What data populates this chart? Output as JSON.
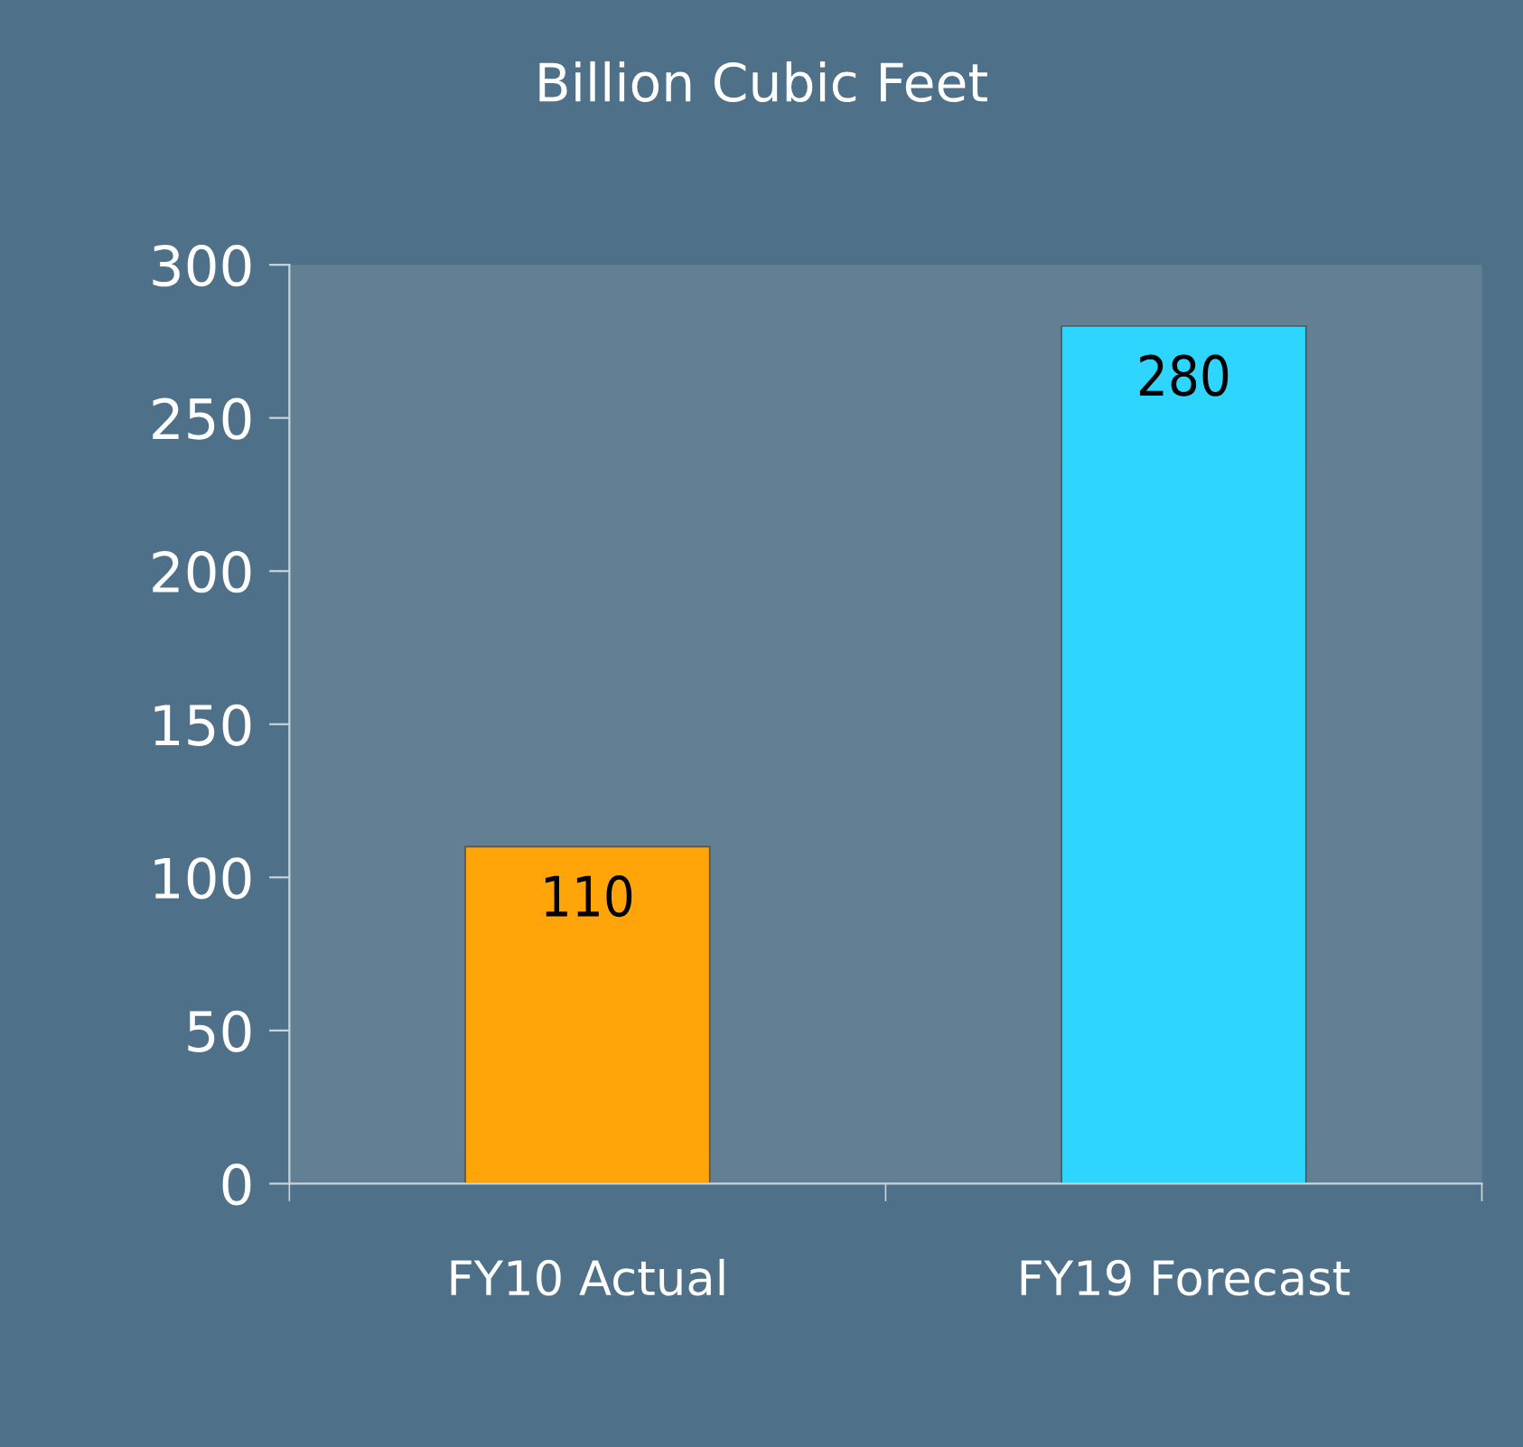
{
  "chart_data": {
    "type": "bar",
    "title": "Billion Cubic Feet",
    "categories": [
      "FY10 Actual",
      "FY19 Forecast"
    ],
    "values": [
      110,
      280
    ],
    "colors": [
      "#ffa50a",
      "#2ed5ff"
    ],
    "ylim": [
      0,
      300
    ],
    "yticks": [
      0,
      50,
      100,
      150,
      200,
      250,
      300
    ],
    "data_labels": true,
    "grid": false
  }
}
